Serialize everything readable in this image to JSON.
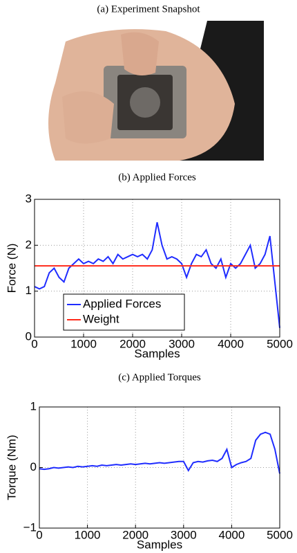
{
  "snapshot": {
    "caption": "(a) Experiment Snapshot"
  },
  "chart_data": [
    {
      "type": "line",
      "title": "(b) Applied Forces",
      "xlabel": "Samples",
      "ylabel": "Force (N)",
      "xlim": [
        0,
        5000
      ],
      "xticks": [
        0,
        1000,
        2000,
        3000,
        4000,
        5000
      ],
      "ylim": [
        0,
        3
      ],
      "yticks": [
        0,
        1,
        2,
        3
      ],
      "grid": true,
      "legend": "lower-left",
      "series": [
        {
          "name": "Applied Forces",
          "color": "#1f2cff",
          "x": [
            0,
            100,
            200,
            300,
            400,
            500,
            600,
            700,
            800,
            900,
            1000,
            1100,
            1200,
            1300,
            1400,
            1500,
            1600,
            1700,
            1800,
            1900,
            2000,
            2100,
            2200,
            2300,
            2400,
            2500,
            2600,
            2700,
            2800,
            2900,
            3000,
            3100,
            3200,
            3300,
            3400,
            3500,
            3600,
            3700,
            3800,
            3900,
            4000,
            4100,
            4200,
            4300,
            4400,
            4500,
            4600,
            4700,
            4800,
            4900,
            5000
          ],
          "values": [
            1.1,
            1.05,
            1.1,
            1.4,
            1.5,
            1.3,
            1.2,
            1.5,
            1.6,
            1.7,
            1.6,
            1.65,
            1.6,
            1.7,
            1.65,
            1.75,
            1.6,
            1.8,
            1.7,
            1.75,
            1.8,
            1.75,
            1.8,
            1.7,
            1.9,
            2.5,
            2.0,
            1.7,
            1.75,
            1.7,
            1.6,
            1.3,
            1.6,
            1.8,
            1.75,
            1.9,
            1.6,
            1.5,
            1.7,
            1.3,
            1.6,
            1.5,
            1.6,
            1.8,
            2.0,
            1.5,
            1.6,
            1.8,
            2.2,
            1.2,
            0.2
          ]
        },
        {
          "name": "Weight",
          "color": "#ff2a1a",
          "x": [
            0,
            5000
          ],
          "values": [
            1.55,
            1.55
          ]
        }
      ]
    },
    {
      "type": "line",
      "title": "(c) Applied Torques",
      "xlabel": "Samples",
      "ylabel": "Torque (Nm)",
      "xlim": [
        0,
        5000
      ],
      "xticks": [
        0,
        1000,
        2000,
        3000,
        4000,
        5000
      ],
      "ylim": [
        -1,
        1
      ],
      "yticks": [
        {
          "value": -1,
          "label": "−1"
        },
        0,
        1
      ],
      "grid": true,
      "series": [
        {
          "name": null,
          "color": "#1f2cff",
          "x": [
            0,
            100,
            200,
            300,
            400,
            500,
            600,
            700,
            800,
            900,
            1000,
            1100,
            1200,
            1300,
            1400,
            1500,
            1600,
            1700,
            1800,
            1900,
            2000,
            2100,
            2200,
            2300,
            2400,
            2500,
            2600,
            2700,
            2800,
            2900,
            3000,
            3100,
            3200,
            3300,
            3400,
            3500,
            3600,
            3700,
            3800,
            3900,
            4000,
            4100,
            4200,
            4300,
            4400,
            4500,
            4600,
            4700,
            4800,
            4900,
            5000
          ],
          "values": [
            -0.02,
            -0.03,
            -0.02,
            0.0,
            -0.01,
            0.0,
            0.01,
            0.0,
            0.02,
            0.01,
            0.02,
            0.03,
            0.02,
            0.04,
            0.03,
            0.04,
            0.05,
            0.04,
            0.05,
            0.06,
            0.05,
            0.06,
            0.07,
            0.06,
            0.07,
            0.08,
            0.07,
            0.08,
            0.09,
            0.1,
            0.1,
            -0.05,
            0.08,
            0.1,
            0.09,
            0.11,
            0.12,
            0.1,
            0.15,
            0.3,
            0.0,
            0.05,
            0.08,
            0.1,
            0.15,
            0.45,
            0.55,
            0.58,
            0.55,
            0.3,
            -0.1
          ]
        }
      ]
    }
  ]
}
